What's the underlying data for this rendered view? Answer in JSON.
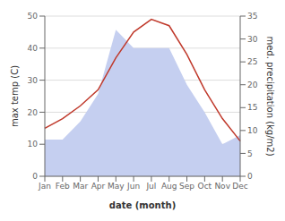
{
  "chart_data": {
    "type": "combo",
    "categories": [
      "Jan",
      "Feb",
      "Mar",
      "Apr",
      "May",
      "Jun",
      "Jul",
      "Aug",
      "Sep",
      "Oct",
      "Nov",
      "Dec"
    ],
    "series": [
      {
        "type": "area",
        "axis": "y2",
        "color": "#c5cff0",
        "values": [
          8,
          8,
          12,
          18,
          32,
          28,
          28,
          28,
          20,
          14,
          7,
          9
        ]
      },
      {
        "type": "line",
        "color": "#c0392b",
        "values": [
          15,
          18,
          22,
          27,
          37,
          45,
          49,
          47,
          38,
          27,
          18,
          11
        ]
      }
    ],
    "xlabel": "date (month)",
    "ylabel": "max temp (C)",
    "y2label": "med. precipitation (kg/m2)",
    "ylim": [
      0,
      50
    ],
    "yticks": [
      0,
      10,
      20,
      30,
      40,
      50
    ],
    "y2lim": [
      0,
      35
    ],
    "y2ticks": [
      0,
      5,
      10,
      15,
      20,
      25,
      30,
      35
    ],
    "grid": true
  }
}
